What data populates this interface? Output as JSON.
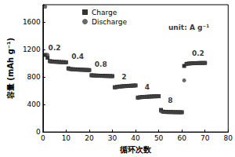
{
  "chart_data": {
    "type": "scatter",
    "x_label": "循环次数",
    "y_label": "容量 (mAh g⁻¹)",
    "xlim": [
      0,
      80
    ],
    "xticks": [
      0,
      10,
      20,
      30,
      40,
      50,
      60,
      70,
      80
    ],
    "ylim": [
      0,
      1850
    ],
    "yticks": [
      0,
      400,
      800,
      1200,
      1600
    ],
    "grid": false,
    "legend": "top",
    "x": [
      1,
      2,
      3,
      4,
      5,
      6,
      7,
      8,
      9,
      10,
      11,
      12,
      13,
      14,
      15,
      16,
      17,
      18,
      19,
      20,
      21,
      22,
      23,
      24,
      25,
      26,
      27,
      28,
      29,
      30,
      31,
      32,
      33,
      34,
      35,
      36,
      37,
      38,
      39,
      40,
      41,
      42,
      43,
      44,
      45,
      46,
      47,
      48,
      49,
      50,
      51,
      52,
      53,
      54,
      55,
      56,
      57,
      58,
      59,
      60,
      61,
      62,
      63,
      64,
      65,
      66,
      67,
      68,
      69,
      70
    ],
    "series": [
      {
        "name": "Charge",
        "color": "#000000",
        "marker": "square",
        "values": [
          1120,
          1080,
          1030,
          1025,
          1022,
          1020,
          1018,
          1016,
          1015,
          1013,
          925,
          915,
          912,
          910,
          908,
          906,
          905,
          903,
          902,
          900,
          825,
          822,
          820,
          818,
          817,
          816,
          815,
          814,
          813,
          812,
          650,
          655,
          660,
          663,
          666,
          668,
          670,
          672,
          674,
          676,
          500,
          505,
          508,
          510,
          512,
          514,
          516,
          518,
          519,
          520,
          320,
          295,
          292,
          290,
          290,
          289,
          288,
          288,
          287,
          287,
          960,
          990,
          995,
          998,
          1000,
          1000,
          1002,
          1003,
          1003,
          1004
        ]
      },
      {
        "name": "Discharge",
        "color": "#444444",
        "marker": "circle",
        "values": [
          1820,
          1120,
          1025,
          1020,
          1018,
          1016,
          1014,
          1012,
          1011,
          1010,
          915,
          910,
          908,
          906,
          904,
          902,
          901,
          900,
          899,
          898,
          820,
          818,
          816,
          815,
          814,
          813,
          812,
          811,
          810,
          810,
          645,
          652,
          658,
          662,
          665,
          667,
          669,
          671,
          673,
          675,
          495,
          503,
          507,
          509,
          511,
          513,
          515,
          517,
          518,
          519,
          300,
          290,
          289,
          288,
          287,
          287,
          286,
          286,
          285,
          285,
          750,
          985,
          992,
          996,
          998,
          999,
          1000,
          1001,
          1002,
          1003
        ]
      }
    ],
    "annotations": [
      {
        "text": "0.2",
        "x": 5,
        "y": 1220
      },
      {
        "text": "0.4",
        "x": 15,
        "y": 1100
      },
      {
        "text": "0.8",
        "x": 25,
        "y": 980
      },
      {
        "text": "2",
        "x": 35,
        "y": 800
      },
      {
        "text": "4",
        "x": 45,
        "y": 650
      },
      {
        "text": "8",
        "x": 55,
        "y": 460
      },
      {
        "text": "0.2",
        "x": 67,
        "y": 1140
      },
      {
        "text": "unit: A g⁻¹",
        "x": 63,
        "y": 1520
      }
    ]
  }
}
